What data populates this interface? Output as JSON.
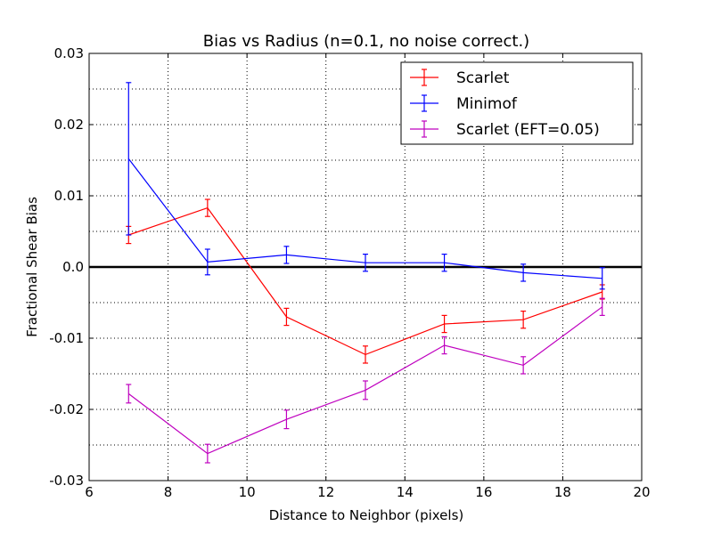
{
  "chart_data": {
    "type": "line",
    "title": "Bias vs Radius (n=0.1, no noise correct.)",
    "xlabel": "Distance to Neighbor (pixels)",
    "ylabel": "Fractional Shear Bias",
    "xlim": [
      6,
      20
    ],
    "ylim": [
      -0.03,
      0.03
    ],
    "xticks": [
      6,
      8,
      10,
      12,
      14,
      16,
      18,
      20
    ],
    "xtick_labels": [
      "6",
      "8",
      "10",
      "12",
      "14",
      "16",
      "18",
      "20"
    ],
    "yticks": [
      -0.03,
      -0.02,
      -0.01,
      0.0,
      0.01,
      0.02,
      0.03
    ],
    "ytick_labels": [
      "-0.03",
      "-0.02",
      "-0.01",
      "0.0",
      "0.01",
      "0.02",
      "0.03"
    ],
    "grid": true,
    "legend_position": "top-right",
    "reference_line": 0.0,
    "series": [
      {
        "name": "Scarlet",
        "color": "#ff0000",
        "x": [
          7,
          9,
          11,
          13,
          15,
          17,
          19
        ],
        "y": [
          0.0045,
          0.0083,
          -0.007,
          -0.0123,
          -0.008,
          -0.0074,
          -0.0035
        ],
        "yerr": [
          0.0012,
          0.0012,
          0.0012,
          0.0012,
          0.0012,
          0.0012,
          0.001
        ]
      },
      {
        "name": "Minimof",
        "color": "#0000ff",
        "x": [
          7,
          9,
          11,
          13,
          15,
          17,
          19
        ],
        "y": [
          0.0152,
          0.0007,
          0.0017,
          0.0006,
          0.0006,
          -0.0008,
          -0.0016
        ],
        "yerr": [
          0.0107,
          0.0018,
          0.0012,
          0.0012,
          0.0012,
          0.0012,
          0.0015
        ]
      },
      {
        "name": "Scarlet (EFT=0.05)",
        "color": "#bf00bf",
        "x": [
          7,
          9,
          11,
          13,
          15,
          17,
          19
        ],
        "y": [
          -0.0178,
          -0.0262,
          -0.0214,
          -0.0173,
          -0.011,
          -0.0138,
          -0.0056
        ],
        "yerr": [
          0.0013,
          0.0013,
          0.0013,
          0.0013,
          0.0012,
          0.0012,
          0.0012
        ]
      }
    ]
  }
}
